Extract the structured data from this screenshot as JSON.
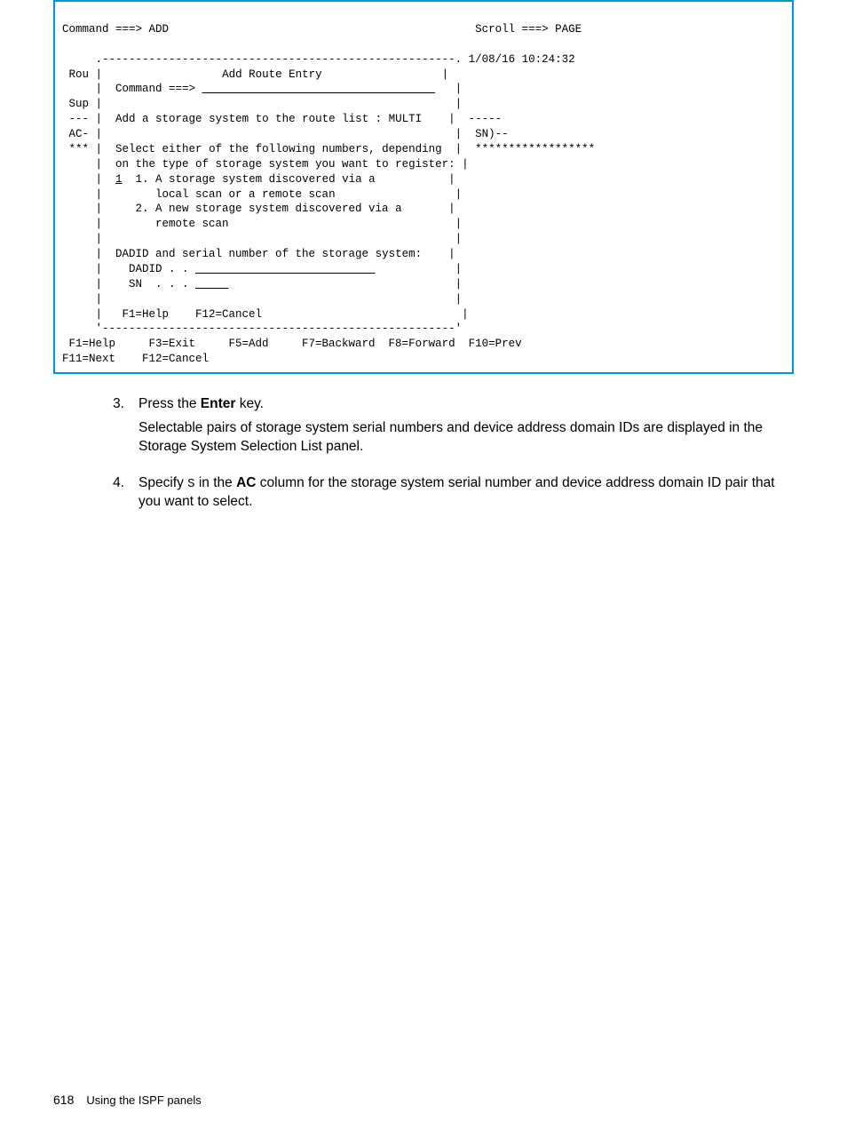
{
  "terminal": {
    "topbar": {
      "left": "Command ===> ADD",
      "right": "Scroll ===> PAGE"
    },
    "timestamp": "1/08/16 10:24:32",
    "leftCol": [
      "Rou",
      "",
      "Sup",
      "---",
      "AC-",
      "***"
    ],
    "dialog": {
      "title": "Add Route Entry",
      "cmdLabel": "Command ===> ",
      "line1": "Add a storage system to the route list : MULTI",
      "selectHeader": "Select either of the following numbers, depending",
      "selectHeader2": "on the type of storage system you want to register:",
      "choiceMarker": "1",
      "choice1a": "1. A storage system discovered via a",
      "choice1b": "local scan or a remote scan",
      "choice2a": "2. A new storage system discovered via a",
      "choice2b": "remote scan",
      "dadidHeader": "DADID and serial number of the storage system:",
      "dadidLabel": "DADID . . ",
      "snLabel": "SN  . . . ",
      "keys": "F1=Help    F12=Cancel"
    },
    "rightCol": {
      "dashes": "-----",
      "sn": "SN)--",
      "stars": "******************"
    },
    "bottomKeys1": " F1=Help     F3=Exit     F5=Add     F7=Backward  F8=Forward  F10=Prev",
    "bottomKeys2": "F11=Next    F12=Cancel"
  },
  "steps": {
    "s3": {
      "num": "3.",
      "p1a": "Press the ",
      "p1b": "Enter",
      "p1c": " key.",
      "p2": "Selectable pairs of storage system serial numbers and device address domain IDs are displayed in the Storage System Selection List panel."
    },
    "s4": {
      "num": "4.",
      "p1a": "Specify ",
      "p1b": "S",
      "p1c": " in the ",
      "p1d": "AC",
      "p1e": " column for the storage system serial number and device address domain ID pair that you want to select."
    }
  },
  "footer": {
    "pagenum": "618",
    "title": "Using the ISPF panels"
  }
}
